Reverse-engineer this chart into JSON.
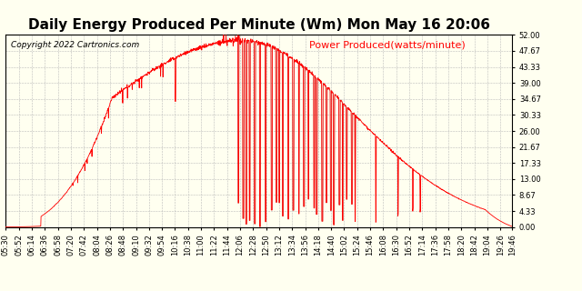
{
  "title": "Daily Energy Produced Per Minute (Wm) Mon May 16 20:06",
  "copyright_text": "Copyright 2022 Cartronics.com",
  "legend_label": "Power Produced(watts/minute)",
  "background_color": "#fffff0",
  "line_color": "#ff0000",
  "dark_line_color": "#555555",
  "grid_color": "#bbbbbb",
  "ymin": 0.0,
  "ymax": 52.0,
  "yticks": [
    0.0,
    4.33,
    8.67,
    13.0,
    17.33,
    21.67,
    26.0,
    30.33,
    34.67,
    39.0,
    43.33,
    47.67,
    52.0
  ],
  "xtick_labels": [
    "05:30",
    "05:52",
    "06:14",
    "06:36",
    "06:58",
    "07:20",
    "07:42",
    "08:04",
    "08:26",
    "08:48",
    "09:10",
    "09:32",
    "09:54",
    "10:16",
    "10:38",
    "11:00",
    "11:22",
    "11:44",
    "12:06",
    "12:28",
    "12:50",
    "13:12",
    "13:34",
    "13:56",
    "14:18",
    "14:40",
    "15:02",
    "15:24",
    "15:46",
    "16:08",
    "16:30",
    "16:52",
    "17:14",
    "17:36",
    "17:58",
    "18:20",
    "18:42",
    "19:04",
    "19:26",
    "19:46"
  ],
  "title_fontsize": 11,
  "tick_fontsize": 6,
  "copyright_fontsize": 6.5,
  "legend_fontsize": 8
}
